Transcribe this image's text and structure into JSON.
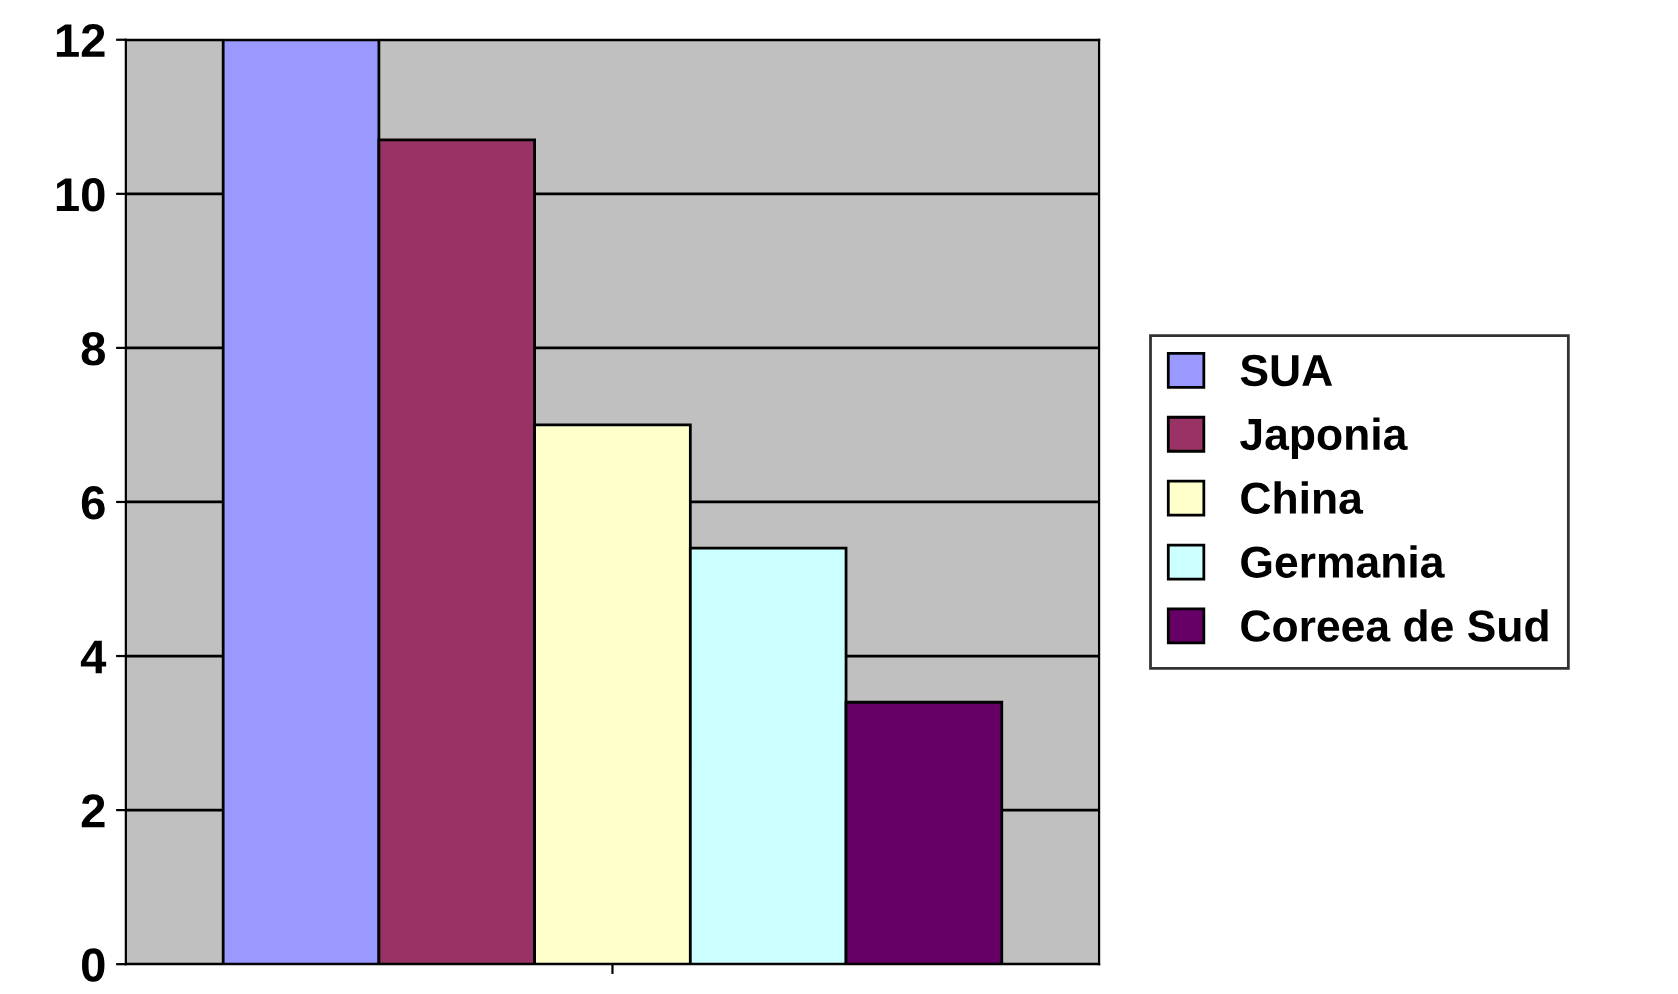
{
  "chart_data": {
    "type": "bar",
    "categories": [
      null
    ],
    "series": [
      {
        "name": "SUA",
        "color": "#9999ff",
        "values": [
          12
        ]
      },
      {
        "name": "Japonia",
        "color": "#993366",
        "values": [
          10.7
        ]
      },
      {
        "name": "China",
        "color": "#ffffcc",
        "values": [
          7
        ]
      },
      {
        "name": "Germania",
        "color": "#ccffff",
        "values": [
          5.4
        ]
      },
      {
        "name": "Coreea de Sud",
        "color": "#660066",
        "values": [
          3.4
        ]
      }
    ],
    "ylim": [
      0,
      12
    ],
    "yticks": [
      0,
      2,
      4,
      6,
      8,
      10,
      12
    ],
    "grid": "y",
    "legend": "right"
  }
}
